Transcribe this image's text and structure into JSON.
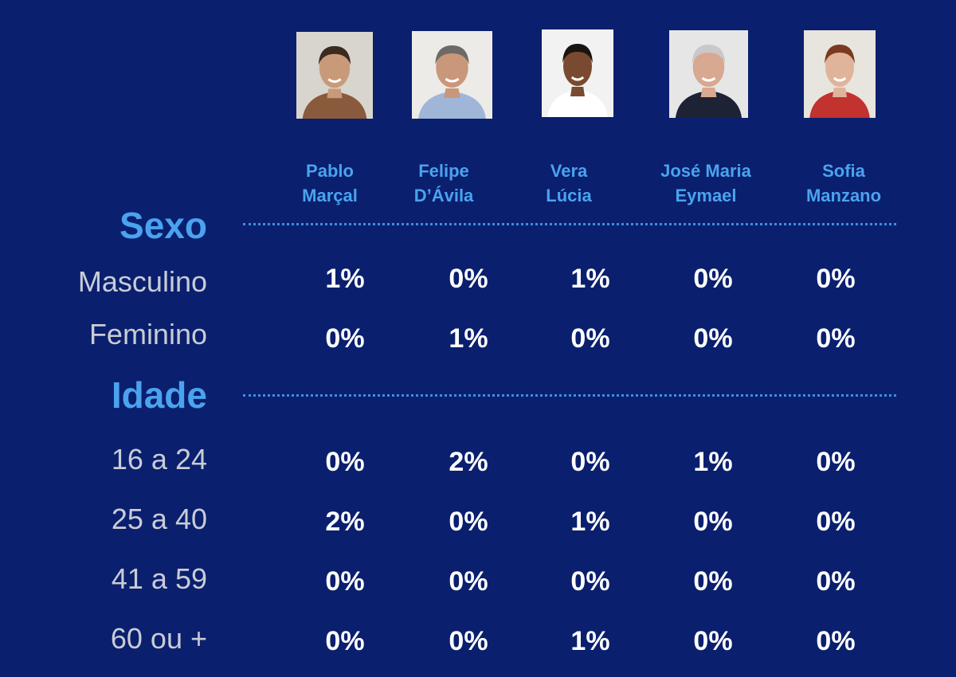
{
  "chart_data": {
    "type": "table",
    "candidates": [
      {
        "name_line1": "Pablo",
        "name_line2": "Marçal",
        "photo_bg": "#d8d5cf",
        "skin": "#c99a7a",
        "hair": "#3a2a20",
        "shirt": "#8a5a3c"
      },
      {
        "name_line1": "Felipe",
        "name_line2": "D’Ávila",
        "photo_bg": "#ecebe8",
        "skin": "#c9977a",
        "hair": "#6d6a66",
        "shirt": "#9fb6d8"
      },
      {
        "name_line1": "Vera",
        "name_line2": "Lúcia",
        "photo_bg": "#f2f2f2",
        "skin": "#7a4a30",
        "hair": "#1a1410",
        "shirt": "#ffffff"
      },
      {
        "name_line1": "José Maria",
        "name_line2": "Eymael",
        "photo_bg": "#e6e6e6",
        "skin": "#d8a890",
        "hair": "#c9c9c9",
        "shirt": "#1e2235"
      },
      {
        "name_line1": "Sofia",
        "name_line2": "Manzano",
        "photo_bg": "#e8e4de",
        "skin": "#e0b49a",
        "hair": "#7a3a20",
        "shirt": "#c2322e"
      }
    ],
    "sections": [
      {
        "title": "Sexo",
        "rows": [
          {
            "label": "Masculino",
            "values": [
              "1%",
              "0%",
              "1%",
              "0%",
              "0%"
            ]
          },
          {
            "label": "Feminino",
            "values": [
              "0%",
              "1%",
              "0%",
              "0%",
              "0%"
            ]
          }
        ]
      },
      {
        "title": "Idade",
        "rows": [
          {
            "label": "16 a 24",
            "values": [
              "0%",
              "2%",
              "0%",
              "1%",
              "0%"
            ]
          },
          {
            "label": "25 a 40",
            "values": [
              "2%",
              "0%",
              "1%",
              "0%",
              "0%"
            ]
          },
          {
            "label": "41 a 59",
            "values": [
              "0%",
              "0%",
              "0%",
              "0%",
              "0%"
            ]
          },
          {
            "label": "60 ou +",
            "values": [
              "0%",
              "0%",
              "1%",
              "0%",
              "0%"
            ]
          }
        ]
      }
    ],
    "colors": {
      "background": "#0a1f6e",
      "accent": "#4aa3ee",
      "row_label": "#c9ccd6",
      "value": "#ffffff"
    }
  }
}
